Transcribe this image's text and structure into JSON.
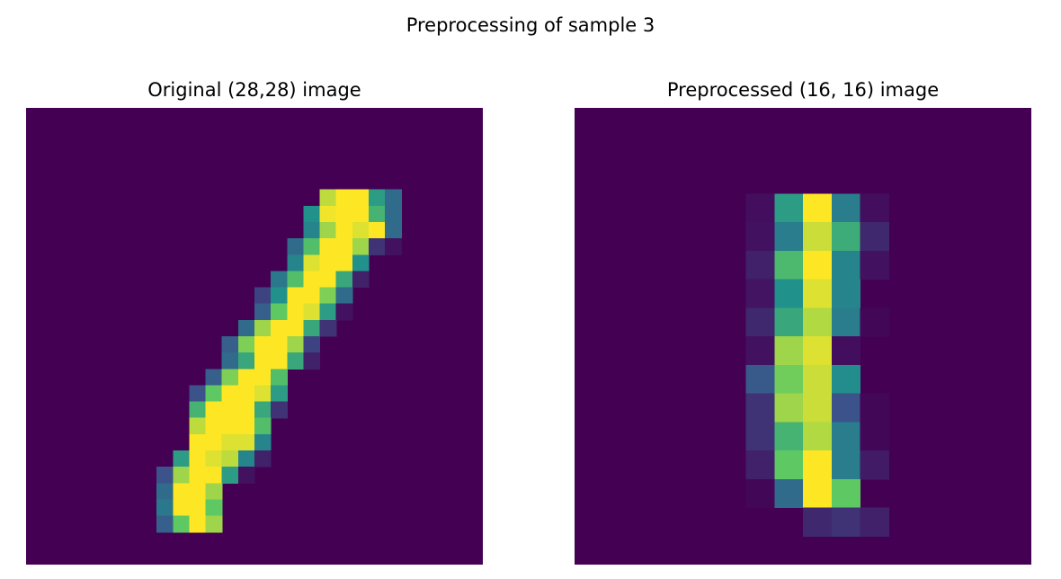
{
  "figure": {
    "suptitle": "Preprocessing of sample 3"
  },
  "colormap": {
    "name": "viridis",
    "stops": [
      "#440154",
      "#3b528b",
      "#21918c",
      "#5ec962",
      "#fde725"
    ]
  },
  "chart_data": [
    {
      "type": "heatmap",
      "title": "Original (28,28) image",
      "shape": [
        28,
        28
      ],
      "vmin": 0,
      "vmax": 1,
      "colormap": "viridis",
      "axes_visible": false,
      "cells": [
        [
          5,
          18,
          0.9
        ],
        [
          5,
          19,
          1.0
        ],
        [
          5,
          20,
          1.0
        ],
        [
          5,
          21,
          0.55
        ],
        [
          5,
          22,
          0.35
        ],
        [
          6,
          17,
          0.5
        ],
        [
          6,
          18,
          0.98
        ],
        [
          6,
          19,
          1.0
        ],
        [
          6,
          20,
          1.0
        ],
        [
          6,
          21,
          0.65
        ],
        [
          6,
          22,
          0.35
        ],
        [
          7,
          17,
          0.45
        ],
        [
          7,
          18,
          0.85
        ],
        [
          7,
          19,
          1.0
        ],
        [
          7,
          20,
          0.95
        ],
        [
          7,
          21,
          1.0
        ],
        [
          7,
          22,
          0.35
        ],
        [
          8,
          16,
          0.35
        ],
        [
          8,
          17,
          0.7
        ],
        [
          8,
          18,
          1.0
        ],
        [
          8,
          19,
          1.0
        ],
        [
          8,
          20,
          0.85
        ],
        [
          8,
          21,
          0.15
        ],
        [
          8,
          22,
          0.05
        ],
        [
          9,
          16,
          0.45
        ],
        [
          9,
          17,
          0.95
        ],
        [
          9,
          18,
          1.0
        ],
        [
          9,
          19,
          1.0
        ],
        [
          9,
          20,
          0.5
        ],
        [
          10,
          15,
          0.4
        ],
        [
          10,
          16,
          0.7
        ],
        [
          10,
          17,
          1.0
        ],
        [
          10,
          18,
          1.0
        ],
        [
          10,
          19,
          0.6
        ],
        [
          10,
          20,
          0.1
        ],
        [
          11,
          14,
          0.2
        ],
        [
          11,
          15,
          0.5
        ],
        [
          11,
          16,
          1.0
        ],
        [
          11,
          17,
          1.0
        ],
        [
          11,
          18,
          0.8
        ],
        [
          11,
          19,
          0.35
        ],
        [
          12,
          14,
          0.3
        ],
        [
          12,
          15,
          0.75
        ],
        [
          12,
          16,
          1.0
        ],
        [
          12,
          17,
          0.95
        ],
        [
          12,
          18,
          0.55
        ],
        [
          12,
          19,
          0.05
        ],
        [
          13,
          13,
          0.35
        ],
        [
          13,
          14,
          0.85
        ],
        [
          13,
          15,
          1.0
        ],
        [
          13,
          16,
          1.0
        ],
        [
          13,
          17,
          0.6
        ],
        [
          13,
          18,
          0.15
        ],
        [
          14,
          12,
          0.3
        ],
        [
          14,
          13,
          0.8
        ],
        [
          14,
          14,
          1.0
        ],
        [
          14,
          15,
          1.0
        ],
        [
          14,
          16,
          0.85
        ],
        [
          14,
          17,
          0.2
        ],
        [
          15,
          12,
          0.35
        ],
        [
          15,
          13,
          0.6
        ],
        [
          15,
          14,
          1.0
        ],
        [
          15,
          15,
          1.0
        ],
        [
          15,
          16,
          0.6
        ],
        [
          15,
          17,
          0.1
        ],
        [
          16,
          11,
          0.3
        ],
        [
          16,
          12,
          0.8
        ],
        [
          16,
          13,
          1.0
        ],
        [
          16,
          14,
          1.0
        ],
        [
          16,
          15,
          0.7
        ],
        [
          17,
          10,
          0.25
        ],
        [
          17,
          11,
          0.75
        ],
        [
          17,
          12,
          1.0
        ],
        [
          17,
          13,
          1.0
        ],
        [
          17,
          14,
          0.95
        ],
        [
          17,
          15,
          0.55
        ],
        [
          18,
          10,
          0.65
        ],
        [
          18,
          11,
          1.0
        ],
        [
          18,
          12,
          1.0
        ],
        [
          18,
          13,
          1.0
        ],
        [
          18,
          14,
          0.6
        ],
        [
          18,
          15,
          0.15
        ],
        [
          19,
          10,
          0.9
        ],
        [
          19,
          11,
          1.0
        ],
        [
          19,
          12,
          1.0
        ],
        [
          19,
          13,
          1.0
        ],
        [
          19,
          14,
          0.7
        ],
        [
          20,
          10,
          1.0
        ],
        [
          20,
          11,
          1.0
        ],
        [
          20,
          12,
          0.95
        ],
        [
          20,
          13,
          0.95
        ],
        [
          20,
          14,
          0.45
        ],
        [
          21,
          9,
          0.55
        ],
        [
          21,
          10,
          1.0
        ],
        [
          21,
          11,
          0.95
        ],
        [
          21,
          12,
          0.9
        ],
        [
          21,
          13,
          0.45
        ],
        [
          21,
          14,
          0.1
        ],
        [
          22,
          8,
          0.25
        ],
        [
          22,
          9,
          0.85
        ],
        [
          22,
          10,
          1.0
        ],
        [
          22,
          11,
          1.0
        ],
        [
          22,
          12,
          0.55
        ],
        [
          22,
          13,
          0.05
        ],
        [
          23,
          8,
          0.35
        ],
        [
          23,
          9,
          1.0
        ],
        [
          23,
          10,
          1.0
        ],
        [
          23,
          11,
          0.85
        ],
        [
          24,
          8,
          0.4
        ],
        [
          24,
          9,
          1.0
        ],
        [
          24,
          10,
          1.0
        ],
        [
          24,
          11,
          0.75
        ],
        [
          25,
          8,
          0.3
        ],
        [
          25,
          9,
          0.75
        ],
        [
          25,
          10,
          1.0
        ],
        [
          25,
          11,
          0.85
        ]
      ]
    },
    {
      "type": "heatmap",
      "title": "Preprocessed (16, 16) image",
      "shape": [
        16,
        16
      ],
      "vmin": 0,
      "vmax": 1,
      "colormap": "viridis",
      "axes_visible": false,
      "cells": [
        [
          3,
          6,
          0.04
        ],
        [
          3,
          7,
          0.55
        ],
        [
          3,
          8,
          1.0
        ],
        [
          3,
          9,
          0.42
        ],
        [
          3,
          10,
          0.04
        ],
        [
          4,
          6,
          0.05
        ],
        [
          4,
          7,
          0.42
        ],
        [
          4,
          8,
          0.92
        ],
        [
          4,
          9,
          0.62
        ],
        [
          4,
          10,
          0.12
        ],
        [
          5,
          6,
          0.1
        ],
        [
          5,
          7,
          0.68
        ],
        [
          5,
          8,
          1.0
        ],
        [
          5,
          9,
          0.45
        ],
        [
          5,
          10,
          0.05
        ],
        [
          6,
          6,
          0.06
        ],
        [
          6,
          7,
          0.5
        ],
        [
          6,
          8,
          0.95
        ],
        [
          6,
          9,
          0.45
        ],
        [
          7,
          6,
          0.12
        ],
        [
          7,
          7,
          0.6
        ],
        [
          7,
          8,
          0.88
        ],
        [
          7,
          9,
          0.42
        ],
        [
          7,
          10,
          0.02
        ],
        [
          8,
          6,
          0.05
        ],
        [
          8,
          7,
          0.85
        ],
        [
          8,
          8,
          0.95
        ],
        [
          8,
          9,
          0.04
        ],
        [
          9,
          6,
          0.28
        ],
        [
          9,
          7,
          0.78
        ],
        [
          9,
          8,
          0.92
        ],
        [
          9,
          9,
          0.48
        ],
        [
          10,
          6,
          0.15
        ],
        [
          10,
          7,
          0.85
        ],
        [
          10,
          8,
          0.92
        ],
        [
          10,
          9,
          0.25
        ],
        [
          10,
          10,
          0.02
        ],
        [
          11,
          6,
          0.15
        ],
        [
          11,
          7,
          0.65
        ],
        [
          11,
          8,
          0.88
        ],
        [
          11,
          9,
          0.42
        ],
        [
          11,
          10,
          0.02
        ],
        [
          12,
          6,
          0.1
        ],
        [
          12,
          7,
          0.75
        ],
        [
          12,
          8,
          1.0
        ],
        [
          12,
          9,
          0.42
        ],
        [
          12,
          10,
          0.08
        ],
        [
          13,
          6,
          0.02
        ],
        [
          13,
          7,
          0.35
        ],
        [
          13,
          8,
          1.0
        ],
        [
          13,
          9,
          0.75
        ],
        [
          14,
          8,
          0.12
        ],
        [
          14,
          9,
          0.15
        ],
        [
          14,
          10,
          0.1
        ]
      ]
    }
  ]
}
